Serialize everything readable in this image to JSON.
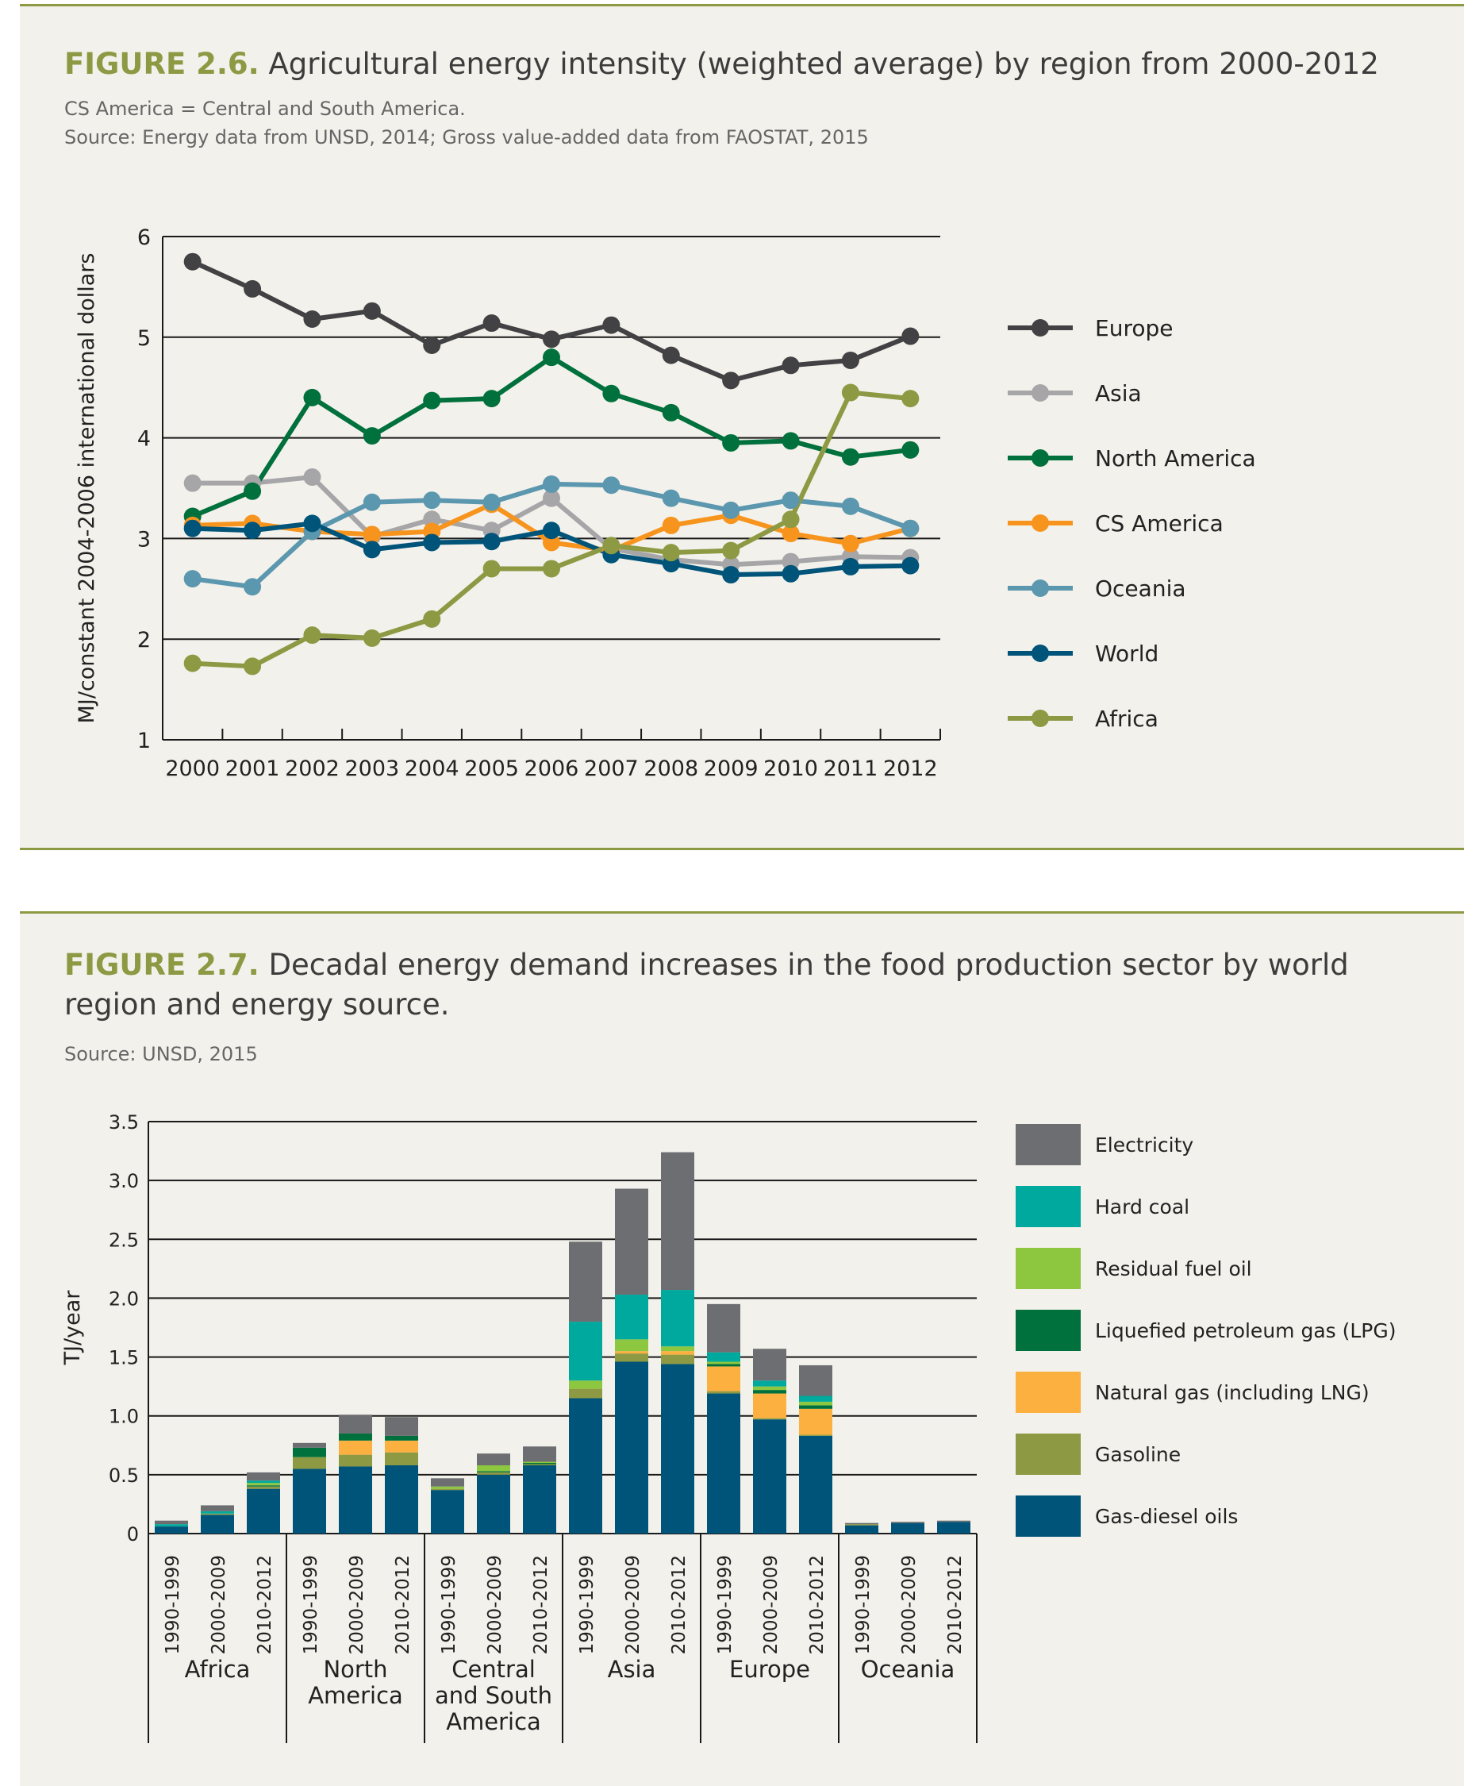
{
  "figure1": {
    "number": "FIGURE 2.6.",
    "title": "Agricultural energy intensity (weighted average) by region from 2000-2012",
    "notes": [
      "CS America = Central and South America.",
      "Source: Energy data from UNSD, 2014; Gross value-added data from FAOSTAT, 2015"
    ]
  },
  "figure2": {
    "number": "FIGURE 2.7.",
    "title": "Decadal energy demand increases in the food production sector by world region and energy source.",
    "notes": [
      "Source: UNSD, 2015"
    ]
  },
  "chart_data": [
    {
      "type": "line",
      "title": "Agricultural energy intensity (weighted average) by region from 2000-2012",
      "ylabel": "MJ/constant 2004-2006 international dollars",
      "xlabel": "",
      "ylim": [
        1,
        6
      ],
      "yticks": [
        1,
        2,
        3,
        4,
        5,
        6
      ],
      "x": [
        "2000",
        "2001",
        "2002",
        "2003",
        "2004",
        "2005",
        "2006",
        "2007",
        "2008",
        "2009",
        "2010",
        "2011",
        "2012"
      ],
      "grid": true,
      "legend": "right",
      "series": [
        {
          "name": "Europe",
          "color": "#424244",
          "values": [
            5.75,
            5.48,
            5.18,
            5.26,
            4.92,
            5.14,
            4.98,
            5.12,
            4.82,
            4.57,
            4.72,
            4.77,
            5.01
          ]
        },
        {
          "name": "Asia",
          "color": "#a6a6a8",
          "values": [
            3.55,
            3.55,
            3.61,
            3.02,
            3.19,
            3.08,
            3.4,
            2.9,
            2.79,
            2.74,
            2.77,
            2.82,
            2.81
          ]
        },
        {
          "name": "North America",
          "color": "#00703c",
          "values": [
            3.22,
            3.47,
            4.4,
            4.02,
            4.37,
            4.39,
            4.8,
            4.44,
            4.25,
            3.95,
            3.97,
            3.81,
            3.88
          ]
        },
        {
          "name": "CS America",
          "color": "#f7941e",
          "values": [
            3.13,
            3.15,
            3.07,
            3.04,
            3.07,
            3.34,
            2.96,
            2.88,
            3.13,
            3.23,
            3.05,
            2.95,
            3.1
          ]
        },
        {
          "name": "Oceania",
          "color": "#5b97ae",
          "values": [
            2.6,
            2.52,
            3.07,
            3.36,
            3.38,
            3.36,
            3.54,
            3.53,
            3.4,
            3.28,
            3.38,
            3.32,
            3.1
          ]
        },
        {
          "name": "World",
          "color": "#005479",
          "values": [
            3.1,
            3.08,
            3.15,
            2.89,
            2.96,
            2.97,
            3.08,
            2.84,
            2.75,
            2.64,
            2.65,
            2.72,
            2.73
          ]
        },
        {
          "name": "Africa",
          "color": "#8d9943",
          "values": [
            1.76,
            1.73,
            2.04,
            2.01,
            2.2,
            2.7,
            2.7,
            2.93,
            2.86,
            2.88,
            3.19,
            4.45,
            4.39
          ]
        }
      ]
    },
    {
      "type": "bar",
      "stacked": true,
      "title": "Decadal energy demand increases in the food production sector by world region and energy source.",
      "ylabel": "TJ/year",
      "xlabel": "",
      "ylim": [
        0,
        3.5
      ],
      "yticks": [
        "0",
        "0.5",
        "1.0",
        "1.5",
        "2.0",
        "2.5",
        "3.0",
        "3.5"
      ],
      "groups": [
        "Africa",
        "North America",
        "Central and South America",
        "Asia",
        "Europe",
        "Oceania"
      ],
      "categories": [
        "1990-1999",
        "2000-2009",
        "2010-2012"
      ],
      "grid": true,
      "legend": "right",
      "series": [
        {
          "name": "Gas-diesel oils",
          "color": "#005479",
          "values": [
            [
              0.06,
              0.16,
              0.38
            ],
            [
              0.55,
              0.57,
              0.58
            ],
            [
              0.37,
              0.5,
              0.58
            ],
            [
              1.15,
              1.46,
              1.44
            ],
            [
              1.19,
              0.97,
              0.83
            ],
            [
              0.07,
              0.09,
              0.1
            ]
          ]
        },
        {
          "name": "Gasoline",
          "color": "#8d9943",
          "values": [
            [
              0.0,
              0.01,
              0.02
            ],
            [
              0.1,
              0.1,
              0.11
            ],
            [
              0.01,
              0.02,
              0.01
            ],
            [
              0.08,
              0.07,
              0.08
            ],
            [
              0.02,
              0.01,
              0.01
            ],
            [
              0.01,
              0.0,
              0.0
            ]
          ]
        },
        {
          "name": "Natural gas (including LNG)",
          "color": "#fbb040",
          "values": [
            [
              0.0,
              0.0,
              0.0
            ],
            [
              0.0,
              0.12,
              0.1
            ],
            [
              0.0,
              0.0,
              0.0
            ],
            [
              0.0,
              0.02,
              0.03
            ],
            [
              0.21,
              0.21,
              0.22
            ],
            [
              0.0,
              0.0,
              0.0
            ]
          ]
        },
        {
          "name": "Liquefied petroleum gas (LPG)",
          "color": "#00703c",
          "values": [
            [
              0.0,
              0.0,
              0.01
            ],
            [
              0.08,
              0.06,
              0.04
            ],
            [
              0.0,
              0.01,
              0.01
            ],
            [
              0.0,
              0.0,
              0.0
            ],
            [
              0.02,
              0.03,
              0.03
            ],
            [
              0.0,
              0.0,
              0.0
            ]
          ]
        },
        {
          "name": "Residual fuel oil",
          "color": "#8dc63f",
          "values": [
            [
              0.0,
              0.0,
              0.02
            ],
            [
              0.0,
              0.0,
              0.0
            ],
            [
              0.02,
              0.05,
              0.01
            ],
            [
              0.07,
              0.1,
              0.04
            ],
            [
              0.02,
              0.03,
              0.03
            ],
            [
              0.0,
              0.0,
              0.0
            ]
          ]
        },
        {
          "name": "Hard coal",
          "color": "#00a99d",
          "values": [
            [
              0.02,
              0.02,
              0.02
            ],
            [
              0.0,
              0.0,
              0.0
            ],
            [
              0.0,
              0.0,
              0.0
            ],
            [
              0.5,
              0.38,
              0.48
            ],
            [
              0.08,
              0.05,
              0.05
            ],
            [
              0.0,
              0.0,
              0.0
            ]
          ]
        },
        {
          "name": "Electricity",
          "color": "#6d6e71",
          "values": [
            [
              0.03,
              0.05,
              0.07
            ],
            [
              0.04,
              0.16,
              0.16
            ],
            [
              0.07,
              0.1,
              0.13
            ],
            [
              0.68,
              0.9,
              1.17
            ],
            [
              0.41,
              0.27,
              0.26
            ],
            [
              0.01,
              0.01,
              0.01
            ]
          ]
        }
      ]
    }
  ]
}
